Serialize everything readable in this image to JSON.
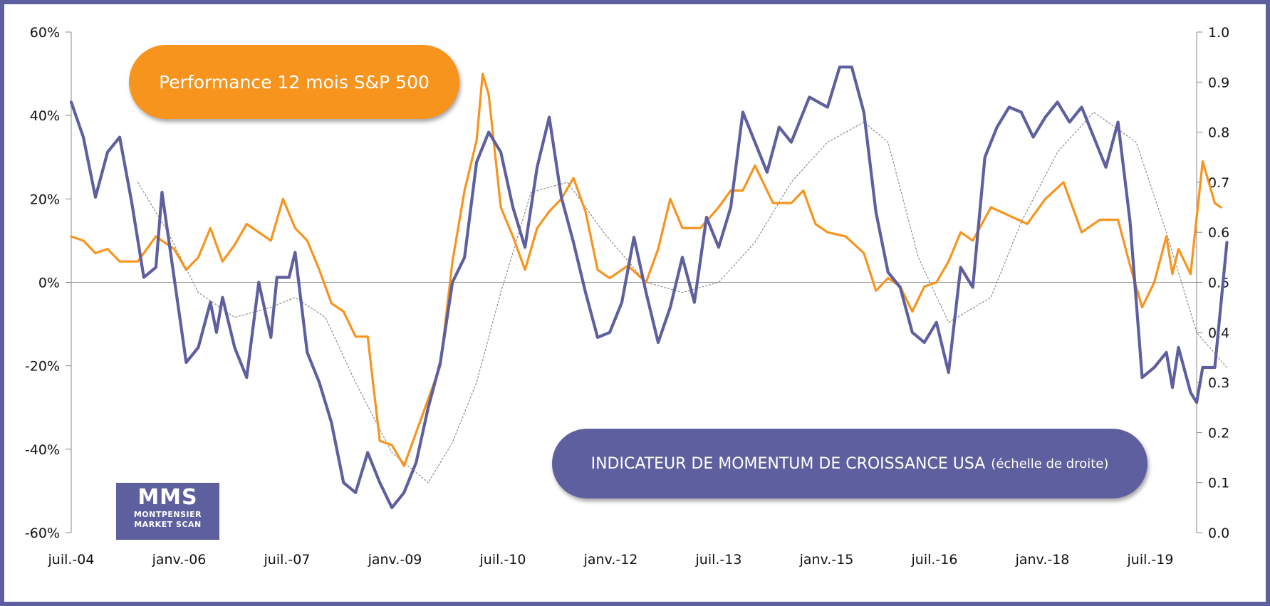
{
  "labels": {
    "sp500": "Performance 12 mois S&P 500",
    "indicator_main": "INDICATEUR DE MOMENTUM DE CROISSANCE USA",
    "indicator_note": "(échelle de droite)"
  },
  "logo": {
    "title": "MMS",
    "line1": "MONTPENSIER",
    "line2": "MARKET SCAN"
  },
  "colors": {
    "sp500": "#f7941d",
    "indicator": "#5e5f9e",
    "smoothed": "#8a8a8a",
    "frame": "#5e5f9e"
  },
  "chart_data": {
    "type": "line",
    "x_axis": {
      "labels": [
        "juil.-04",
        "janv.-06",
        "juil.-07",
        "janv.-09",
        "juil.-10",
        "janv.-12",
        "juil.-13",
        "janv.-15",
        "juil.-16",
        "janv.-18",
        "juil.-19"
      ],
      "range": [
        "2004-07",
        "2020-01"
      ]
    },
    "y_left": {
      "range": [
        -0.6,
        0.6
      ],
      "ticks": [
        "60%",
        "40%",
        "20%",
        "0%",
        "-20%",
        "-40%",
        "-60%"
      ]
    },
    "y_right": {
      "range": [
        0.0,
        1.0
      ],
      "ticks": [
        "1.0",
        "0.9",
        "0.8",
        "0.7",
        "0.6",
        "0.5",
        "0.4",
        "0.3",
        "0.2",
        "0.1",
        "0.0"
      ]
    },
    "series": [
      {
        "name": "Performance 12 mois S&P 500",
        "axis": "left",
        "points": [
          [
            "2004-07",
            0.11
          ],
          [
            "2004-09",
            0.1
          ],
          [
            "2004-11",
            0.07
          ],
          [
            "2005-01",
            0.08
          ],
          [
            "2005-03",
            0.05
          ],
          [
            "2005-06",
            0.05
          ],
          [
            "2005-09",
            0.11
          ],
          [
            "2005-12",
            0.08
          ],
          [
            "2006-02",
            0.03
          ],
          [
            "2006-04",
            0.06
          ],
          [
            "2006-06",
            0.13
          ],
          [
            "2006-08",
            0.05
          ],
          [
            "2006-10",
            0.09
          ],
          [
            "2006-12",
            0.14
          ],
          [
            "2007-02",
            0.12
          ],
          [
            "2007-04",
            0.1
          ],
          [
            "2007-06",
            0.2
          ],
          [
            "2007-08",
            0.13
          ],
          [
            "2007-10",
            0.1
          ],
          [
            "2007-12",
            0.03
          ],
          [
            "2008-02",
            -0.05
          ],
          [
            "2008-04",
            -0.07
          ],
          [
            "2008-06",
            -0.13
          ],
          [
            "2008-08",
            -0.13
          ],
          [
            "2008-10",
            -0.38
          ],
          [
            "2008-12",
            -0.39
          ],
          [
            "2009-02",
            -0.44
          ],
          [
            "2009-04",
            -0.36
          ],
          [
            "2009-06",
            -0.28
          ],
          [
            "2009-08",
            -0.2
          ],
          [
            "2009-10",
            0.05
          ],
          [
            "2009-12",
            0.22
          ],
          [
            "2010-02",
            0.34
          ],
          [
            "2010-03",
            0.5
          ],
          [
            "2010-04",
            0.45
          ],
          [
            "2010-06",
            0.18
          ],
          [
            "2010-08",
            0.11
          ],
          [
            "2010-10",
            0.03
          ],
          [
            "2010-12",
            0.13
          ],
          [
            "2011-02",
            0.17
          ],
          [
            "2011-04",
            0.2
          ],
          [
            "2011-06",
            0.25
          ],
          [
            "2011-08",
            0.17
          ],
          [
            "2011-10",
            0.03
          ],
          [
            "2011-12",
            0.01
          ],
          [
            "2012-03",
            0.04
          ],
          [
            "2012-06",
            0.0
          ],
          [
            "2012-08",
            0.08
          ],
          [
            "2012-10",
            0.2
          ],
          [
            "2012-12",
            0.13
          ],
          [
            "2013-03",
            0.13
          ],
          [
            "2013-06",
            0.18
          ],
          [
            "2013-08",
            0.22
          ],
          [
            "2013-10",
            0.22
          ],
          [
            "2013-12",
            0.28
          ],
          [
            "2014-03",
            0.19
          ],
          [
            "2014-06",
            0.19
          ],
          [
            "2014-08",
            0.22
          ],
          [
            "2014-10",
            0.14
          ],
          [
            "2014-12",
            0.12
          ],
          [
            "2015-03",
            0.11
          ],
          [
            "2015-06",
            0.07
          ],
          [
            "2015-08",
            -0.02
          ],
          [
            "2015-10",
            0.01
          ],
          [
            "2015-12",
            -0.01
          ],
          [
            "2016-02",
            -0.07
          ],
          [
            "2016-04",
            -0.01
          ],
          [
            "2016-06",
            0.0
          ],
          [
            "2016-08",
            0.05
          ],
          [
            "2016-10",
            0.12
          ],
          [
            "2016-12",
            0.1
          ],
          [
            "2017-03",
            0.18
          ],
          [
            "2017-06",
            0.16
          ],
          [
            "2017-09",
            0.14
          ],
          [
            "2017-12",
            0.2
          ],
          [
            "2018-03",
            0.24
          ],
          [
            "2018-06",
            0.12
          ],
          [
            "2018-09",
            0.15
          ],
          [
            "2018-12",
            0.15
          ],
          [
            "2019-02",
            0.04
          ],
          [
            "2019-04",
            -0.06
          ],
          [
            "2019-06",
            0.0
          ],
          [
            "2019-08",
            0.11
          ],
          [
            "2019-09",
            0.02
          ],
          [
            "2019-10",
            0.08
          ],
          [
            "2019-12",
            0.02
          ],
          [
            "2020-02",
            0.29
          ],
          [
            "2020-04",
            0.19
          ],
          [
            "2020-05",
            0.18
          ]
        ]
      },
      {
        "name": "INDICATEUR DE MOMENTUM DE CROISSANCE USA (échelle de droite)",
        "axis": "right",
        "points": [
          [
            "2004-07",
            0.86
          ],
          [
            "2004-09",
            0.79
          ],
          [
            "2004-11",
            0.67
          ],
          [
            "2005-01",
            0.76
          ],
          [
            "2005-03",
            0.79
          ],
          [
            "2005-05",
            0.66
          ],
          [
            "2005-07",
            0.51
          ],
          [
            "2005-09",
            0.53
          ],
          [
            "2005-10",
            0.68
          ],
          [
            "2005-12",
            0.51
          ],
          [
            "2006-02",
            0.34
          ],
          [
            "2006-04",
            0.37
          ],
          [
            "2006-06",
            0.46
          ],
          [
            "2006-07",
            0.4
          ],
          [
            "2006-08",
            0.47
          ],
          [
            "2006-10",
            0.37
          ],
          [
            "2006-12",
            0.31
          ],
          [
            "2007-02",
            0.5
          ],
          [
            "2007-04",
            0.39
          ],
          [
            "2007-05",
            0.51
          ],
          [
            "2007-07",
            0.51
          ],
          [
            "2007-08",
            0.56
          ],
          [
            "2007-10",
            0.36
          ],
          [
            "2007-12",
            0.3
          ],
          [
            "2008-02",
            0.22
          ],
          [
            "2008-04",
            0.1
          ],
          [
            "2008-06",
            0.08
          ],
          [
            "2008-08",
            0.16
          ],
          [
            "2008-10",
            0.1
          ],
          [
            "2008-12",
            0.05
          ],
          [
            "2009-02",
            0.08
          ],
          [
            "2009-04",
            0.14
          ],
          [
            "2009-06",
            0.25
          ],
          [
            "2009-08",
            0.34
          ],
          [
            "2009-10",
            0.5
          ],
          [
            "2009-12",
            0.55
          ],
          [
            "2010-02",
            0.74
          ],
          [
            "2010-04",
            0.8
          ],
          [
            "2010-06",
            0.76
          ],
          [
            "2010-08",
            0.65
          ],
          [
            "2010-10",
            0.57
          ],
          [
            "2010-12",
            0.73
          ],
          [
            "2011-02",
            0.83
          ],
          [
            "2011-04",
            0.67
          ],
          [
            "2011-06",
            0.58
          ],
          [
            "2011-08",
            0.48
          ],
          [
            "2011-10",
            0.39
          ],
          [
            "2011-12",
            0.4
          ],
          [
            "2012-02",
            0.46
          ],
          [
            "2012-04",
            0.59
          ],
          [
            "2012-06",
            0.48
          ],
          [
            "2012-08",
            0.38
          ],
          [
            "2012-10",
            0.45
          ],
          [
            "2012-12",
            0.55
          ],
          [
            "2013-02",
            0.46
          ],
          [
            "2013-04",
            0.63
          ],
          [
            "2013-06",
            0.57
          ],
          [
            "2013-08",
            0.65
          ],
          [
            "2013-10",
            0.84
          ],
          [
            "2013-12",
            0.78
          ],
          [
            "2014-02",
            0.72
          ],
          [
            "2014-04",
            0.81
          ],
          [
            "2014-06",
            0.78
          ],
          [
            "2014-09",
            0.87
          ],
          [
            "2014-12",
            0.85
          ],
          [
            "2015-02",
            0.93
          ],
          [
            "2015-04",
            0.93
          ],
          [
            "2015-06",
            0.84
          ],
          [
            "2015-08",
            0.64
          ],
          [
            "2015-10",
            0.52
          ],
          [
            "2015-12",
            0.49
          ],
          [
            "2016-02",
            0.4
          ],
          [
            "2016-04",
            0.38
          ],
          [
            "2016-06",
            0.42
          ],
          [
            "2016-08",
            0.32
          ],
          [
            "2016-10",
            0.53
          ],
          [
            "2016-12",
            0.49
          ],
          [
            "2017-02",
            0.75
          ],
          [
            "2017-04",
            0.81
          ],
          [
            "2017-06",
            0.85
          ],
          [
            "2017-08",
            0.84
          ],
          [
            "2017-10",
            0.79
          ],
          [
            "2017-12",
            0.83
          ],
          [
            "2018-02",
            0.86
          ],
          [
            "2018-04",
            0.82
          ],
          [
            "2018-06",
            0.85
          ],
          [
            "2018-08",
            0.79
          ],
          [
            "2018-10",
            0.73
          ],
          [
            "2018-12",
            0.82
          ],
          [
            "2019-02",
            0.62
          ],
          [
            "2019-04",
            0.31
          ],
          [
            "2019-06",
            0.33
          ],
          [
            "2019-08",
            0.36
          ],
          [
            "2019-09",
            0.29
          ],
          [
            "2019-10",
            0.37
          ],
          [
            "2019-12",
            0.28
          ],
          [
            "2020-01",
            0.26
          ],
          [
            "2020-02",
            0.33
          ],
          [
            "2020-04",
            0.33
          ],
          [
            "2020-06",
            0.58
          ]
        ]
      },
      {
        "axis": "right",
        "style": "dotted",
        "points": [
          [
            "2005-06",
            0.7
          ],
          [
            "2005-11",
            0.6
          ],
          [
            "2006-04",
            0.48
          ],
          [
            "2006-10",
            0.43
          ],
          [
            "2007-04",
            0.45
          ],
          [
            "2007-08",
            0.47
          ],
          [
            "2008-01",
            0.43
          ],
          [
            "2008-06",
            0.3
          ],
          [
            "2008-12",
            0.16
          ],
          [
            "2009-06",
            0.1
          ],
          [
            "2009-10",
            0.18
          ],
          [
            "2010-02",
            0.3
          ],
          [
            "2010-06",
            0.48
          ],
          [
            "2010-11",
            0.68
          ],
          [
            "2011-05",
            0.7
          ],
          [
            "2011-11",
            0.6
          ],
          [
            "2012-06",
            0.5
          ],
          [
            "2012-12",
            0.48
          ],
          [
            "2013-06",
            0.5
          ],
          [
            "2013-12",
            0.58
          ],
          [
            "2014-06",
            0.7
          ],
          [
            "2014-12",
            0.78
          ],
          [
            "2015-06",
            0.82
          ],
          [
            "2015-10",
            0.78
          ],
          [
            "2016-03",
            0.55
          ],
          [
            "2016-08",
            0.42
          ],
          [
            "2017-03",
            0.47
          ],
          [
            "2017-08",
            0.62
          ],
          [
            "2018-02",
            0.76
          ],
          [
            "2018-08",
            0.84
          ],
          [
            "2019-03",
            0.78
          ],
          [
            "2019-08",
            0.6
          ],
          [
            "2020-01",
            0.4
          ],
          [
            "2020-06",
            0.33
          ]
        ]
      }
    ],
    "baseline": 0,
    "grid": false
  }
}
